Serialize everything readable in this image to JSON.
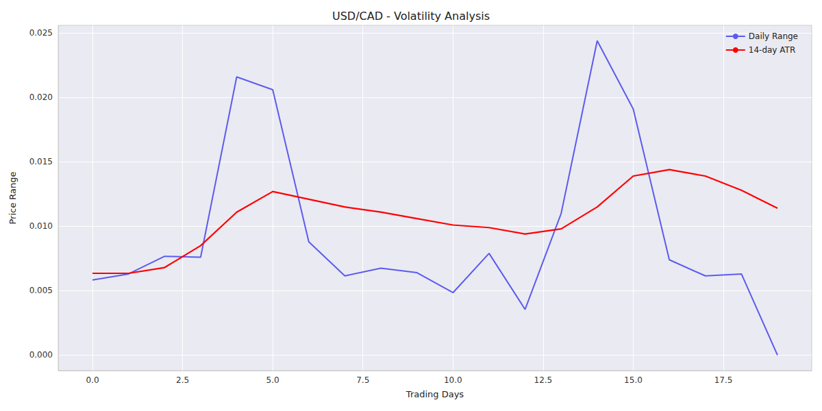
{
  "chart_data": {
    "type": "line",
    "title": "USD/CAD - Volatility Analysis",
    "x_label": "Trading Days",
    "y_label": "Price Range",
    "x": [
      0,
      1,
      2,
      3,
      4,
      5,
      6,
      7,
      8,
      9,
      10,
      11,
      12,
      13,
      14,
      15,
      16,
      17,
      18,
      19
    ],
    "series": [
      {
        "name": "Daily Range",
        "color": "#5b5bef",
        "values": [
          0.00583,
          0.0063,
          0.00767,
          0.0076,
          0.0216,
          0.0206,
          0.0088,
          0.00615,
          0.00675,
          0.0064,
          0.00485,
          0.0079,
          0.00355,
          0.011,
          0.0244,
          0.0191,
          0.0074,
          0.00615,
          0.0063,
          0.0
        ]
      },
      {
        "name": "14-day ATR",
        "color": "#ff0000",
        "values": [
          0.00635,
          0.00635,
          0.0068,
          0.0085,
          0.0111,
          0.0127,
          0.0121,
          0.0115,
          0.0111,
          0.0106,
          0.0101,
          0.0099,
          0.0094,
          0.0098,
          0.0115,
          0.0139,
          0.0144,
          0.0139,
          0.0128,
          0.0114
        ]
      }
    ],
    "xlim": [
      -0.95,
      19.95
    ],
    "xticks": [
      {
        "value": 0,
        "label": "0.0"
      },
      2.5,
      {
        "value": 5,
        "label": "5.0"
      },
      7.5,
      {
        "value": 10,
        "label": "10.0"
      },
      12.5,
      {
        "value": 15,
        "label": "15.0"
      },
      17.5
    ],
    "ylim": [
      -0.0012,
      0.0256
    ],
    "yticks": [
      {
        "value": 0,
        "label": "0.000"
      },
      {
        "value": 0.005,
        "label": "0.005"
      },
      {
        "value": 0.01,
        "label": "0.010"
      },
      {
        "value": 0.015,
        "label": "0.015"
      },
      {
        "value": 0.02,
        "label": "0.020"
      },
      {
        "value": 0.025,
        "label": "0.025"
      }
    ],
    "grid": true,
    "legend": "upper right"
  }
}
